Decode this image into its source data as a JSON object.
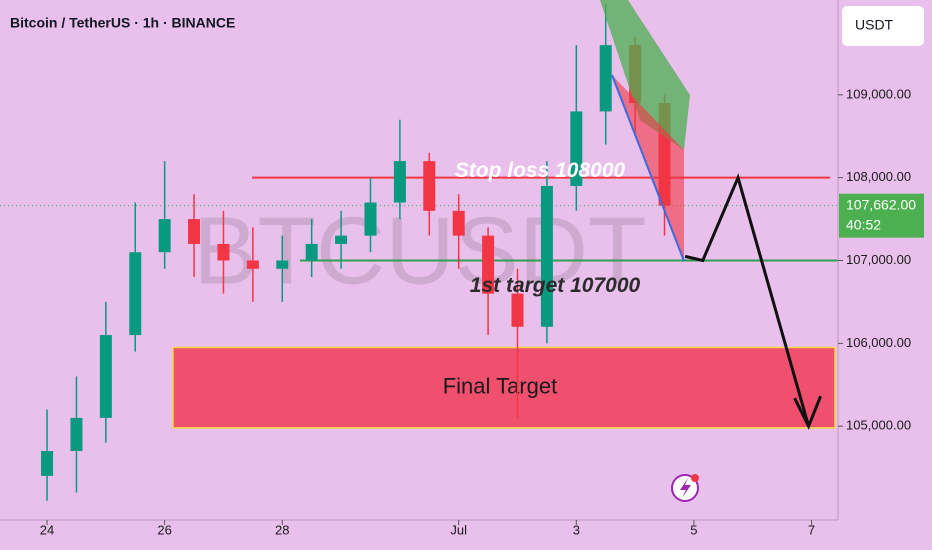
{
  "chart_data": {
    "type": "candlestick",
    "title": "Bitcoin / TetherUS · 1h · BINANCE",
    "watermark": "BTCUSDT",
    "currency": "USDT",
    "x": [
      0,
      0.5,
      1,
      1.5,
      2,
      2.5,
      3,
      3.5,
      4,
      4.5,
      5,
      5.5,
      6,
      6.5,
      7,
      7.5,
      8,
      8.5,
      9,
      9.5,
      10,
      10.5
    ],
    "open": [
      104400,
      104700,
      105100,
      106100,
      107100,
      107500,
      107200,
      107000,
      106900,
      107000,
      107200,
      107300,
      107700,
      108200,
      107600,
      107300,
      106600,
      106200,
      107900,
      108800,
      109600,
      108900
    ],
    "high": [
      105200,
      105600,
      106500,
      107700,
      108200,
      107800,
      107600,
      107400,
      107300,
      107500,
      107600,
      108000,
      108700,
      108300,
      107800,
      107400,
      106900,
      108200,
      109600,
      110100,
      109700,
      109000
    ],
    "low": [
      104100,
      104200,
      104800,
      105900,
      106900,
      106800,
      106600,
      106500,
      106500,
      106800,
      106900,
      107100,
      107500,
      107300,
      106900,
      106100,
      105100,
      106000,
      107600,
      108400,
      108500,
      107300
    ],
    "close": [
      104700,
      105100,
      106100,
      107100,
      107500,
      107200,
      107000,
      106900,
      107000,
      107200,
      107300,
      107700,
      108200,
      107600,
      107300,
      106600,
      106200,
      107900,
      108800,
      109600,
      108900,
      107662
    ],
    "up_color": "#089981",
    "down_color": "#f23645",
    "xlim": [
      -0.8,
      13.45
    ],
    "ylim": [
      103988,
      110145
    ],
    "xticks": [
      {
        "value": 0,
        "label": "24"
      },
      {
        "value": 2,
        "label": "26"
      },
      {
        "value": 4,
        "label": "28"
      },
      {
        "value": 7,
        "label": "Jul"
      },
      {
        "value": 9,
        "label": "3"
      },
      {
        "value": 11,
        "label": "5"
      },
      {
        "value": 13,
        "label": "7"
      }
    ],
    "yticks": [
      {
        "value": 105000,
        "label": "105,000.00"
      },
      {
        "value": 106000,
        "label": "106,000.00"
      },
      {
        "value": 107000,
        "label": "107,000.00"
      },
      {
        "value": 108000,
        "label": "108,000.00"
      },
      {
        "value": 109000,
        "label": "109,000.00"
      }
    ],
    "current_price": {
      "value": 107662,
      "label": "107,662.00",
      "countdown": "40:52"
    },
    "stop_loss": {
      "label": "Stop loss 108000",
      "value": 108000,
      "color": "#f23645"
    },
    "first_target": {
      "label": "1st target 107000",
      "value": 107000,
      "color": "#2e9e4f"
    },
    "final_target": {
      "label": "Final Target",
      "range": [
        104980,
        105950
      ],
      "color": "#f0506e"
    },
    "projection": {
      "x": [
        10.85,
        11.15,
        11.75,
        12.95
      ],
      "y": [
        107050,
        107000,
        108000,
        105000
      ]
    }
  }
}
